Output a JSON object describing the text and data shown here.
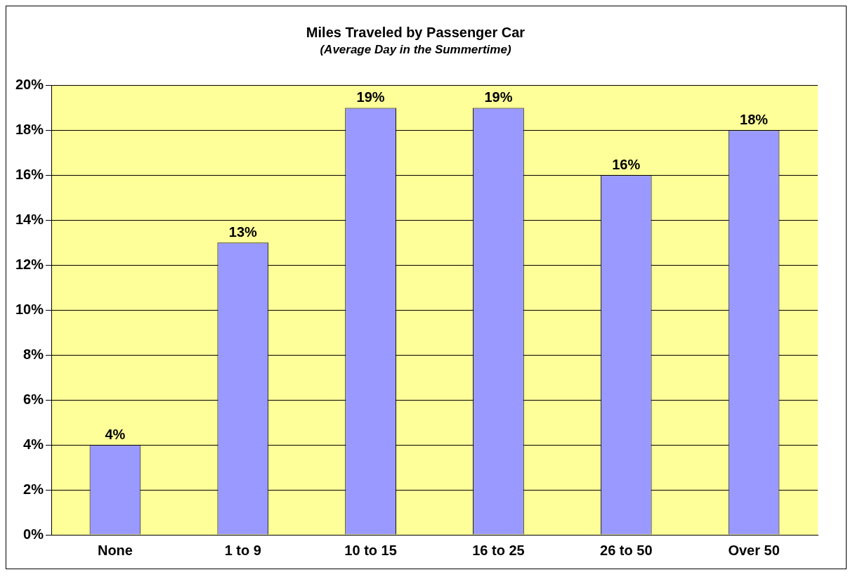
{
  "chart_data": {
    "type": "bar",
    "title": "Miles Traveled by Passenger Car",
    "subtitle": "(Average Day in the Summertime)",
    "categories": [
      "None",
      "1 to 9",
      "10 to 15",
      "16 to 25",
      "26 to 50",
      "Over 50"
    ],
    "values": [
      4,
      13,
      19,
      19,
      16,
      18
    ],
    "color": "#9999ff",
    "value_labels": [
      "4%",
      "13%",
      "19%",
      "19%",
      "16%",
      "18%"
    ],
    "ylim": [
      0,
      20
    ],
    "yticks": [
      {
        "value": 0,
        "label": "0%"
      },
      {
        "value": 2,
        "label": "2%"
      },
      {
        "value": 4,
        "label": "4%"
      },
      {
        "value": 6,
        "label": "6%"
      },
      {
        "value": 8,
        "label": "8%"
      },
      {
        "value": 10,
        "label": "10%"
      },
      {
        "value": 12,
        "label": "12%"
      },
      {
        "value": 14,
        "label": "14%"
      },
      {
        "value": 16,
        "label": "16%"
      },
      {
        "value": 18,
        "label": "18%"
      },
      {
        "value": 20,
        "label": "20%"
      }
    ],
    "grid": "y",
    "legend": false
  }
}
